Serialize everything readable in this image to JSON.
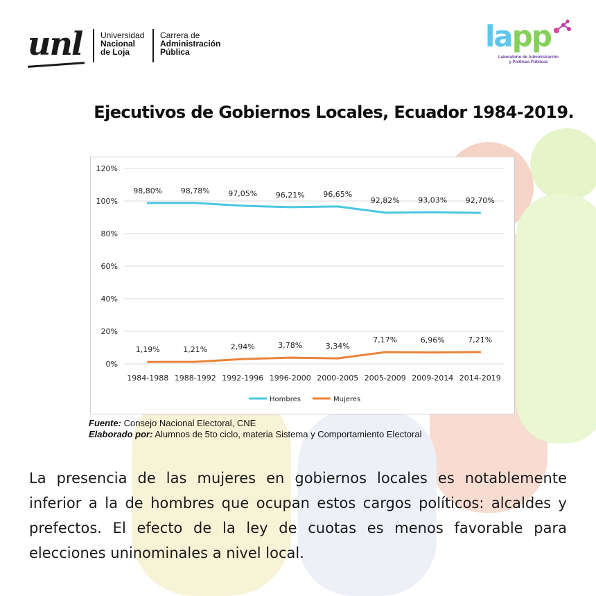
{
  "header": {
    "unl_mark": "unl",
    "university_line1": "Universidad",
    "university_line2": "Nacional",
    "university_line3": "de Loja",
    "career_line1": "Carrera de",
    "career_line2": "Administración",
    "career_line3": "Pública",
    "lapp_word_a": "la",
    "lapp_word_b": "pp",
    "lapp_subtitle_1": "Laboratorio de Administración",
    "lapp_subtitle_2": "y Políticas Públicas"
  },
  "title": "Ejecutivos de Gobiernos Locales, Ecuador 1984-2019.",
  "chart_data": {
    "type": "line",
    "title": "",
    "xlabel": "",
    "ylabel": "",
    "categories": [
      "1984-1988",
      "1988-1992",
      "1992-1996",
      "1996-2000",
      "2000-2005",
      "2005-2009",
      "2009-2014",
      "2014-2019"
    ],
    "series": [
      {
        "name": "Hombres",
        "color": "#4bc6e2",
        "values": [
          98.8,
          98.78,
          97.05,
          96.21,
          96.65,
          92.82,
          93.03,
          92.7
        ],
        "labels": [
          "98,80%",
          "98,78%",
          "97,05%",
          "96,21%",
          "96,65%",
          "92,82%",
          "93,03%",
          "92,70%"
        ]
      },
      {
        "name": "Mujeres",
        "color": "#e8833a",
        "values": [
          1.19,
          1.21,
          2.94,
          3.78,
          3.34,
          7.17,
          6.96,
          7.21
        ],
        "labels": [
          "1,19%",
          "1,21%",
          "2,94%",
          "3,78%",
          "3,34%",
          "7,17%",
          "6,96%",
          "7,21%"
        ]
      }
    ],
    "yticks": [
      "0%",
      "20%",
      "40%",
      "60%",
      "80%",
      "100%",
      "120%"
    ],
    "ylim": [
      0,
      120
    ],
    "grid": true,
    "legend_position": "bottom"
  },
  "notes": {
    "source_key": "Fuente:",
    "source_value": "Consejo Nacional Electoral, CNE",
    "author_key": "Elaborado por:",
    "author_value": "Alumnos de 5to ciclo, materia Sistema y Comportamiento Electoral"
  },
  "description": "La presencia de las mujeres en gobiernos locales es notablemente inferior a la de hombres que ocupan estos cargos políticos: alcaldes y prefectos. El efecto de la ley de cuotas es menos favorable para elecciones uninominales a nivel local."
}
